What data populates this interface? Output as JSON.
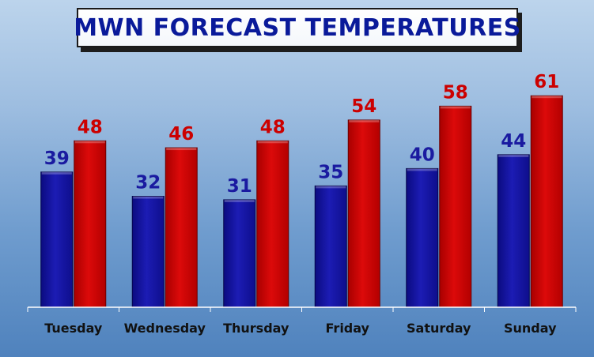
{
  "chart_data": {
    "type": "bar",
    "title": "MWN FORECAST TEMPERATURES",
    "categories": [
      "Tuesday",
      "Wednesday",
      "Thursday",
      "Friday",
      "Saturday",
      "Sunday"
    ],
    "series": [
      {
        "values": [
          39,
          32,
          31,
          35,
          40,
          44
        ]
      },
      {
        "values": [
          48,
          46,
          48,
          54,
          58,
          61
        ]
      }
    ],
    "grid": false,
    "colors": {
      "low": "#1414a8",
      "high": "#d40000",
      "low_label": "#1a1aa0",
      "high_label": "#cc0000",
      "axis": "#ffffff",
      "category_label": "#111111"
    }
  }
}
